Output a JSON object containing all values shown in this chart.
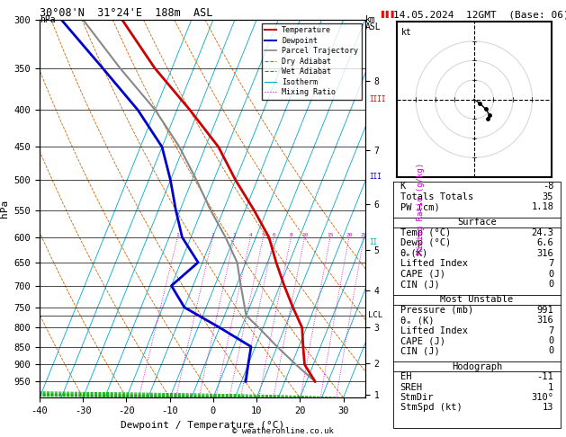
{
  "title_left": "30°08'N  31°24'E  188m  ASL",
  "title_right": "14.05.2024  12GMT  (Base: 06)",
  "xlabel": "Dewpoint / Temperature (°C)",
  "ylabel_left": "hPa",
  "pressure_ticks": [
    300,
    350,
    400,
    450,
    500,
    550,
    600,
    650,
    700,
    750,
    800,
    850,
    900,
    950
  ],
  "temp_xlim": [
    -40,
    35
  ],
  "temp_xticks": [
    -40,
    -30,
    -20,
    -10,
    0,
    10,
    20,
    30
  ],
  "km_ticks": [
    1,
    2,
    3,
    4,
    5,
    6,
    7,
    8
  ],
  "km_pressures": [
    990,
    895,
    800,
    710,
    625,
    540,
    455,
    365
  ],
  "lcl_pressure": 770,
  "temperature_profile": {
    "pressure": [
      950,
      900,
      850,
      800,
      750,
      700,
      650,
      600,
      550,
      500,
      450,
      400,
      350,
      300
    ],
    "temp": [
      22,
      18,
      16,
      14,
      10,
      6,
      2,
      -2,
      -8,
      -15,
      -22,
      -32,
      -44,
      -56
    ]
  },
  "dewpoint_profile": {
    "pressure": [
      950,
      900,
      850,
      800,
      750,
      700,
      650,
      600,
      550,
      500,
      450,
      400,
      350,
      300
    ],
    "dewp": [
      6,
      5,
      4,
      -5,
      -15,
      -20,
      -16,
      -22,
      -26,
      -30,
      -35,
      -44,
      -56,
      -70
    ]
  },
  "parcel_profile": {
    "pressure": [
      950,
      900,
      850,
      800,
      770,
      700,
      650,
      600,
      550,
      500,
      450,
      400,
      350,
      300
    ],
    "temp": [
      22,
      16,
      10,
      4,
      0,
      -4,
      -7,
      -12,
      -18,
      -24,
      -31,
      -40,
      -52,
      -65
    ]
  },
  "dry_adiabats_t0": [
    -30,
    -20,
    -10,
    0,
    10,
    20,
    30,
    40,
    50,
    60
  ],
  "wet_adiabats_t0": [
    -10,
    0,
    5,
    10,
    15,
    20,
    25,
    30
  ],
  "isotherms_t": [
    -40,
    -35,
    -30,
    -25,
    -20,
    -15,
    -10,
    -5,
    0,
    5,
    10,
    15,
    20,
    25,
    30,
    35
  ],
  "mixing_ratio_values": [
    1,
    2,
    3,
    4,
    5,
    6,
    8,
    10,
    15,
    20,
    25
  ],
  "bg_color": "#ffffff",
  "temp_color": "#cc0000",
  "dewp_color": "#0000cc",
  "parcel_color": "#888888",
  "dry_adiabat_color": "#cc6600",
  "wet_adiabat_color": "#00aa00",
  "isotherm_color": "#00aacc",
  "mixing_ratio_color": "#cc00cc",
  "stats_K": -8,
  "stats_TT": 35,
  "stats_PW": 1.18,
  "stats_SurfTemp": 24.3,
  "stats_SurfDewp": 6.6,
  "stats_SurfThetaE": 316,
  "stats_SurfLI": 7,
  "stats_SurfCAPE": 0,
  "stats_SurfCIN": 0,
  "stats_MUPres": 991,
  "stats_MUThetaE": 316,
  "stats_MULI": 7,
  "stats_MUCAPE": 0,
  "stats_MUCIN": 0,
  "stats_EH": -11,
  "stats_SREH": 1,
  "stats_StmDir": 310,
  "stats_StmSpd": 13
}
